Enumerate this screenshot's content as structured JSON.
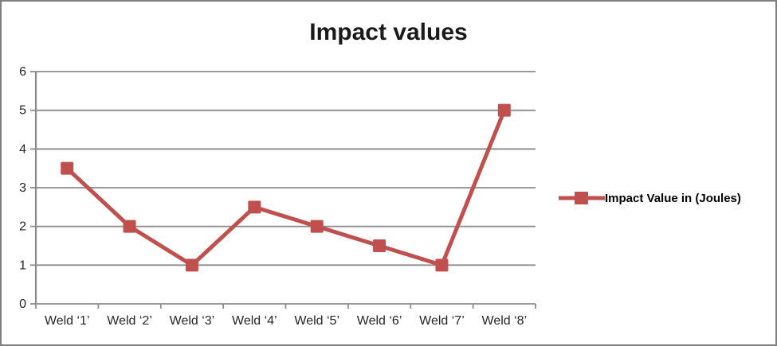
{
  "chart_data": {
    "type": "line",
    "title": "Impact values",
    "categories": [
      "Weld ‘1’",
      "Weld ‘2’",
      "Weld ‘3’",
      "Weld ‘4’",
      "Weld ‘5’",
      "Weld ‘6’",
      "Weld ‘7’",
      "Weld ‘8’"
    ],
    "series": [
      {
        "name": "Impact Value in (Joules)",
        "values": [
          3.5,
          2,
          1,
          2.5,
          2,
          1.5,
          1,
          5
        ]
      }
    ],
    "ylim": [
      0,
      6
    ],
    "ytick_step": 1,
    "ytick_labels": [
      "0",
      "1",
      "2",
      "3",
      "4",
      "5",
      "6"
    ],
    "grid": "horizontal",
    "legend_position": "right",
    "marker": "square",
    "colors": {
      "series": "#c0504d",
      "gridline": "#8c8c8c",
      "axis": "#8c8c8c",
      "tick_text": "#262626",
      "title_text": "#1a1a1a",
      "outer_border": "#7f7f7f",
      "background": "#ffffff"
    }
  }
}
